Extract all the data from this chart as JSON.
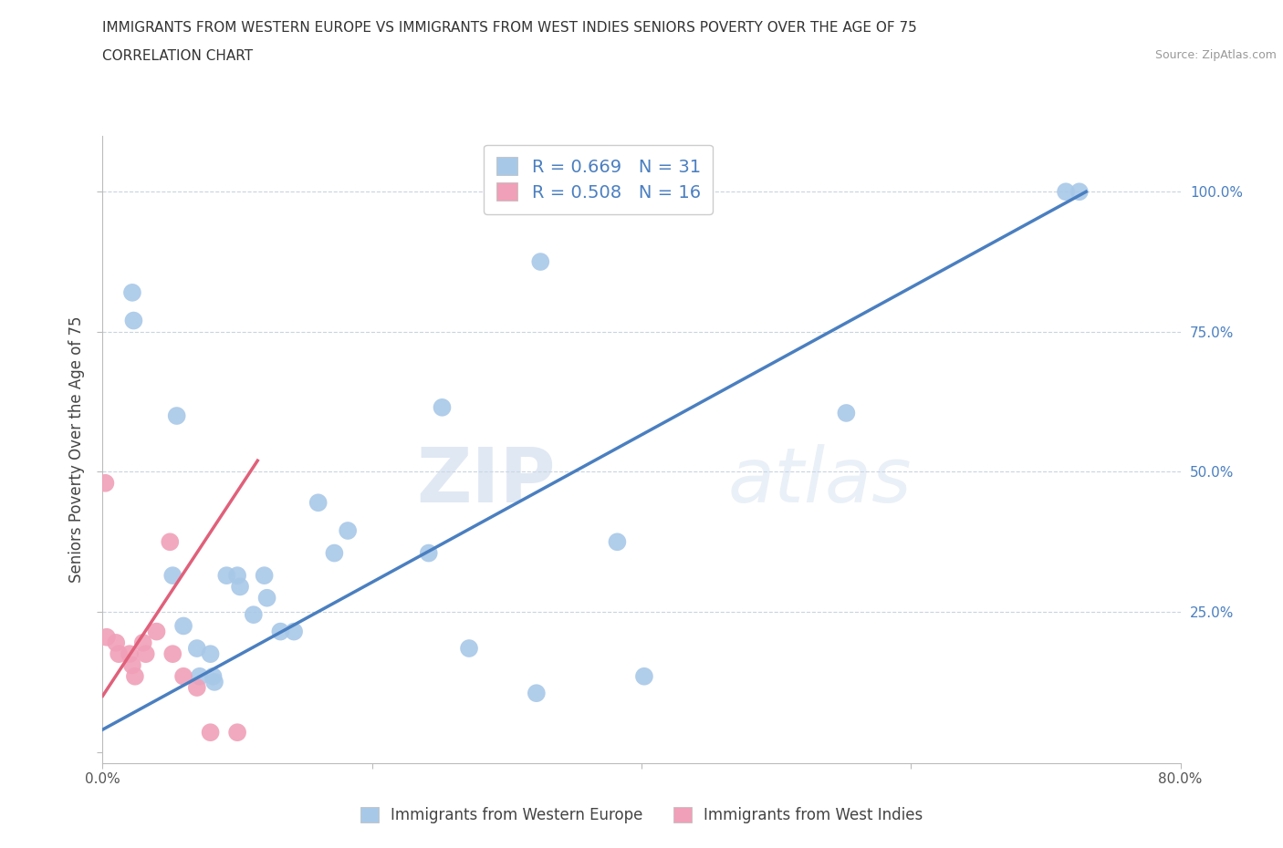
{
  "title_line1": "IMMIGRANTS FROM WESTERN EUROPE VS IMMIGRANTS FROM WEST INDIES SENIORS POVERTY OVER THE AGE OF 75",
  "title_line2": "CORRELATION CHART",
  "source_text": "Source: ZipAtlas.com",
  "ylabel": "Seniors Poverty Over the Age of 75",
  "watermark_zip": "ZIP",
  "watermark_atlas": "atlas",
  "xlim": [
    0.0,
    0.8
  ],
  "ylim": [
    -0.02,
    1.1
  ],
  "xticks": [
    0.0,
    0.2,
    0.4,
    0.6,
    0.8
  ],
  "xticklabels": [
    "0.0%",
    "",
    "",
    "",
    "80.0%"
  ],
  "yticks": [
    0.0,
    0.25,
    0.5,
    0.75,
    1.0
  ],
  "yticklabels": [
    "",
    "25.0%",
    "50.0%",
    "75.0%",
    "100.0%"
  ],
  "blue_R": 0.669,
  "blue_N": 31,
  "pink_R": 0.508,
  "pink_N": 16,
  "blue_color": "#a8c8e8",
  "pink_color": "#f0a0b8",
  "blue_line_color": "#4a7fc0",
  "pink_line_color": "#e0607a",
  "grid_color": "#c8d4e0",
  "background_color": "#ffffff",
  "blue_scatter_x": [
    0.325,
    0.022,
    0.023,
    0.055,
    0.052,
    0.06,
    0.07,
    0.072,
    0.08,
    0.082,
    0.083,
    0.092,
    0.1,
    0.102,
    0.112,
    0.12,
    0.122,
    0.132,
    0.142,
    0.16,
    0.172,
    0.182,
    0.242,
    0.252,
    0.272,
    0.322,
    0.382,
    0.402,
    0.552,
    0.715,
    0.725
  ],
  "blue_scatter_y": [
    0.875,
    0.82,
    0.77,
    0.6,
    0.315,
    0.225,
    0.185,
    0.135,
    0.175,
    0.135,
    0.125,
    0.315,
    0.315,
    0.295,
    0.245,
    0.315,
    0.275,
    0.215,
    0.215,
    0.445,
    0.355,
    0.395,
    0.355,
    0.615,
    0.185,
    0.105,
    0.375,
    0.135,
    0.605,
    1.0,
    1.0
  ],
  "pink_scatter_x": [
    0.002,
    0.003,
    0.01,
    0.012,
    0.02,
    0.022,
    0.024,
    0.03,
    0.032,
    0.04,
    0.05,
    0.052,
    0.06,
    0.07,
    0.08,
    0.1
  ],
  "pink_scatter_y": [
    0.48,
    0.205,
    0.195,
    0.175,
    0.175,
    0.155,
    0.135,
    0.195,
    0.175,
    0.215,
    0.375,
    0.175,
    0.135,
    0.115,
    0.035,
    0.035
  ],
  "blue_trend_x": [
    0.0,
    0.73
  ],
  "blue_trend_y": [
    0.04,
    1.0
  ],
  "pink_trend_x": [
    0.0,
    0.115
  ],
  "pink_trend_y": [
    0.1,
    0.52
  ],
  "legend_blue_label": "Immigrants from Western Europe",
  "legend_pink_label": "Immigrants from West Indies"
}
